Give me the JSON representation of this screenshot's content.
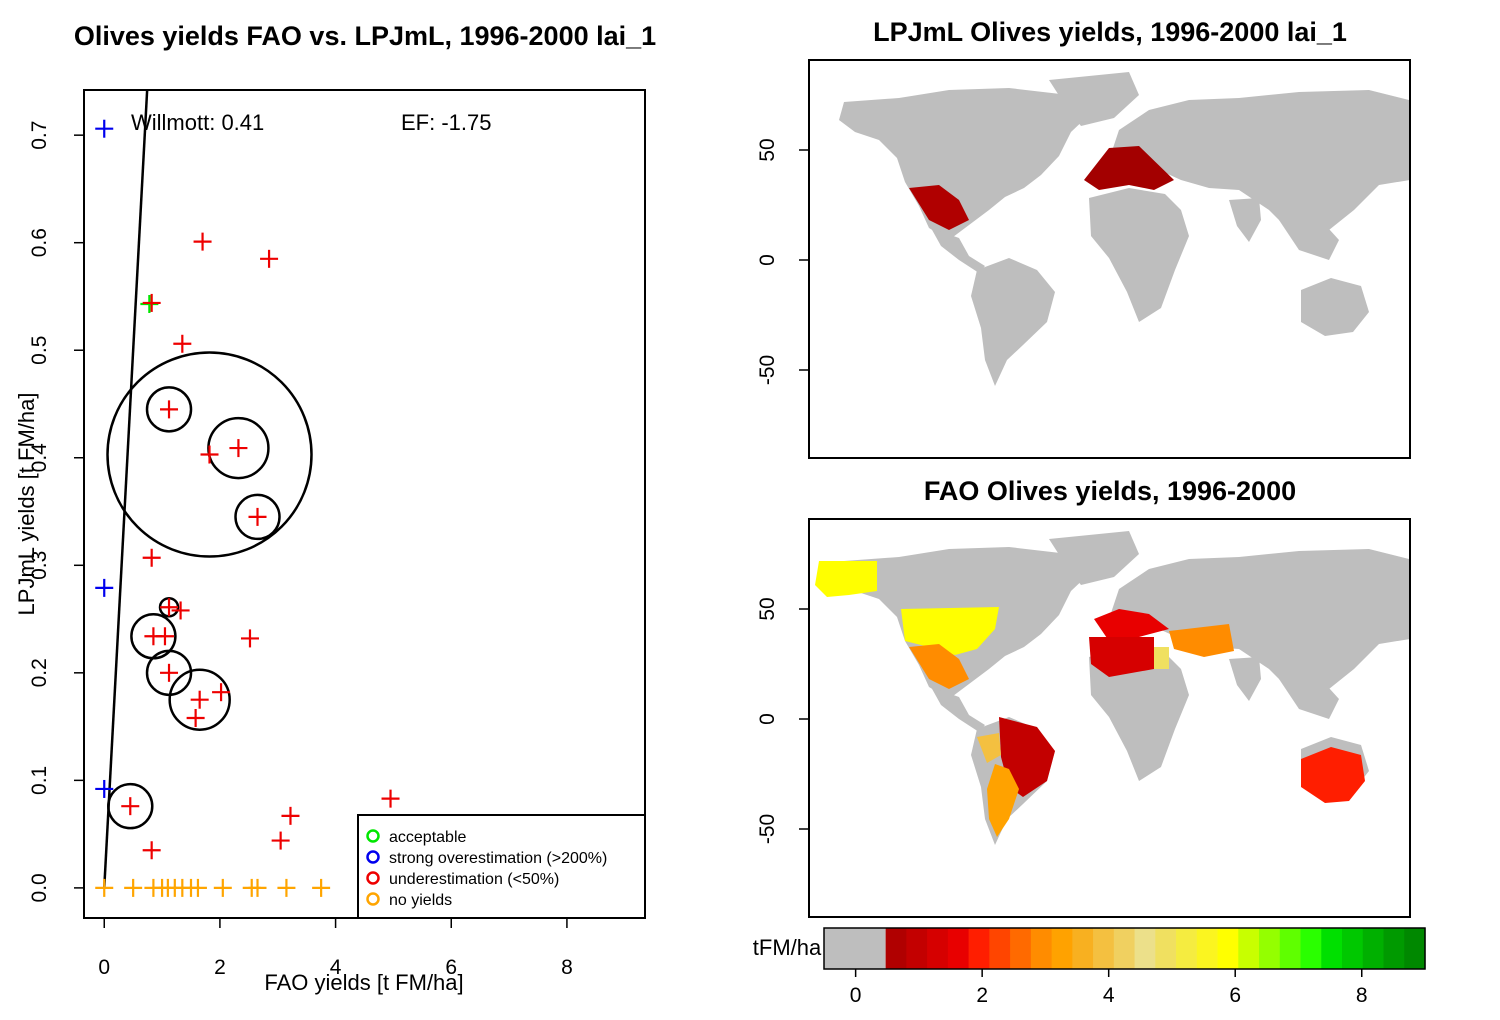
{
  "chart_data": [
    {
      "type": "scatter",
      "title": "Olives yields FAO vs. LPJmL, 1996-2000 lai_1",
      "xlabel": "FAO yields [t FM/ha]",
      "ylabel": "LPJmL yields [t FM/ha]",
      "xlim": [
        -0.35,
        9.35
      ],
      "ylim": [
        -0.028,
        0.742
      ],
      "xticks": [
        "0",
        "2",
        "4",
        "6",
        "8"
      ],
      "yticks": [
        "0.0",
        "0.1",
        "0.2",
        "0.3",
        "0.4",
        "0.5",
        "0.6",
        "0.7"
      ],
      "annotations": {
        "willmott": "Willmott: 0.41",
        "ef": "EF: -1.75"
      },
      "reference_line": {
        "slope": 1.0
      },
      "legend": {
        "placement": "bottom-right",
        "entries": [
          {
            "label": "acceptable",
            "color": "#00e600"
          },
          {
            "label": "strong overestimation (>200%)",
            "color": "#0000ee"
          },
          {
            "label": "underestimation (<50%)",
            "color": "#ee0000"
          },
          {
            "label": "no yields",
            "color": "#ffa500"
          }
        ]
      },
      "series": [
        {
          "category": "acceptable",
          "color": "#00e600",
          "points": [
            [
              0.78,
              0.543
            ]
          ]
        },
        {
          "category": "strong overestimation (>200%)",
          "color": "#0000ee",
          "points": [
            [
              0.0,
              0.706
            ],
            [
              0.0,
              0.279
            ],
            [
              0.0,
              0.092
            ]
          ]
        },
        {
          "category": "underestimation (<50%)",
          "color": "#ee0000",
          "points": [
            [
              1.7,
              0.601
            ],
            [
              2.85,
              0.585
            ],
            [
              0.82,
              0.544
            ],
            [
              1.35,
              0.506
            ],
            [
              1.12,
              0.445
            ],
            [
              2.32,
              0.409
            ],
            [
              1.82,
              0.403
            ],
            [
              2.65,
              0.345
            ],
            [
              0.82,
              0.307
            ],
            [
              1.12,
              0.261
            ],
            [
              1.32,
              0.258
            ],
            [
              0.85,
              0.234
            ],
            [
              1.05,
              0.234
            ],
            [
              2.52,
              0.232
            ],
            [
              1.12,
              0.2
            ],
            [
              2.02,
              0.182
            ],
            [
              1.65,
              0.175
            ],
            [
              1.58,
              0.158
            ],
            [
              0.45,
              0.076
            ],
            [
              4.95,
              0.083
            ],
            [
              3.22,
              0.067
            ],
            [
              3.05,
              0.044
            ],
            [
              0.82,
              0.035
            ]
          ]
        },
        {
          "category": "no yields",
          "color": "#ffa500",
          "points": [
            [
              0.0,
              0.0
            ],
            [
              0.5,
              0.0
            ],
            [
              0.85,
              0.0
            ],
            [
              1.0,
              0.0
            ],
            [
              1.1,
              0.0
            ],
            [
              1.22,
              0.0
            ],
            [
              1.35,
              0.0
            ],
            [
              1.5,
              0.0
            ],
            [
              1.62,
              0.0
            ],
            [
              2.05,
              0.0
            ],
            [
              2.55,
              0.0
            ],
            [
              2.65,
              0.0
            ],
            [
              3.15,
              0.0
            ],
            [
              3.75,
              0.0
            ]
          ]
        }
      ],
      "circles": [
        {
          "x": 1.82,
          "y": 0.403,
          "size": "large"
        },
        {
          "x": 1.12,
          "y": 0.445,
          "size": "small"
        },
        {
          "x": 2.32,
          "y": 0.409,
          "size": "medium"
        },
        {
          "x": 2.65,
          "y": 0.345,
          "size": "small"
        },
        {
          "x": 1.12,
          "y": 0.261,
          "size": "tiny"
        },
        {
          "x": 0.85,
          "y": 0.234,
          "size": "small"
        },
        {
          "x": 1.12,
          "y": 0.2,
          "size": "small"
        },
        {
          "x": 1.65,
          "y": 0.175,
          "size": "medium"
        },
        {
          "x": 0.45,
          "y": 0.076,
          "size": "small"
        }
      ]
    },
    {
      "type": "heatmap",
      "title": "LPJmL Olives yields, 1996-2000 lai_1",
      "yticks": [
        "50",
        "0",
        "-50"
      ],
      "regions_with_yield": [
        "Mexico",
        "Southern Europe",
        "Mediterranean"
      ]
    },
    {
      "type": "heatmap",
      "title": "FAO Olives yields, 1996-2000",
      "yticks": [
        "50",
        "0",
        "-50"
      ],
      "regions_with_yield": [
        "Alaska",
        "United States",
        "Mexico",
        "Brazil",
        "Peru",
        "Argentina",
        "Chile",
        "Southern Europe",
        "North Africa",
        "Egypt",
        "Middle East",
        "Iran",
        "Australia"
      ]
    }
  ],
  "colorbar": {
    "unit_label": "tFM/ha",
    "ticks": [
      "0",
      "2",
      "4",
      "6",
      "8"
    ],
    "range": [
      -0.5,
      9.0
    ],
    "colors": [
      "#bebebe",
      "#b00000",
      "#c30000",
      "#d60000",
      "#e80000",
      "#ff1e00",
      "#ff4500",
      "#ff6a00",
      "#ff8c00",
      "#ffa200",
      "#f8b020",
      "#f4c040",
      "#f0d060",
      "#ece08a",
      "#f0e060",
      "#f5ec40",
      "#fbf520",
      "#ffff00",
      "#c8ff00",
      "#94ff00",
      "#5fff00",
      "#2aff00",
      "#00e000",
      "#00c800",
      "#00b000",
      "#009a00",
      "#008800"
    ]
  },
  "colors": {
    "land": "#bebebe",
    "mexico_lpjml": "#b00000",
    "europe_lpjml": "#a30000"
  }
}
